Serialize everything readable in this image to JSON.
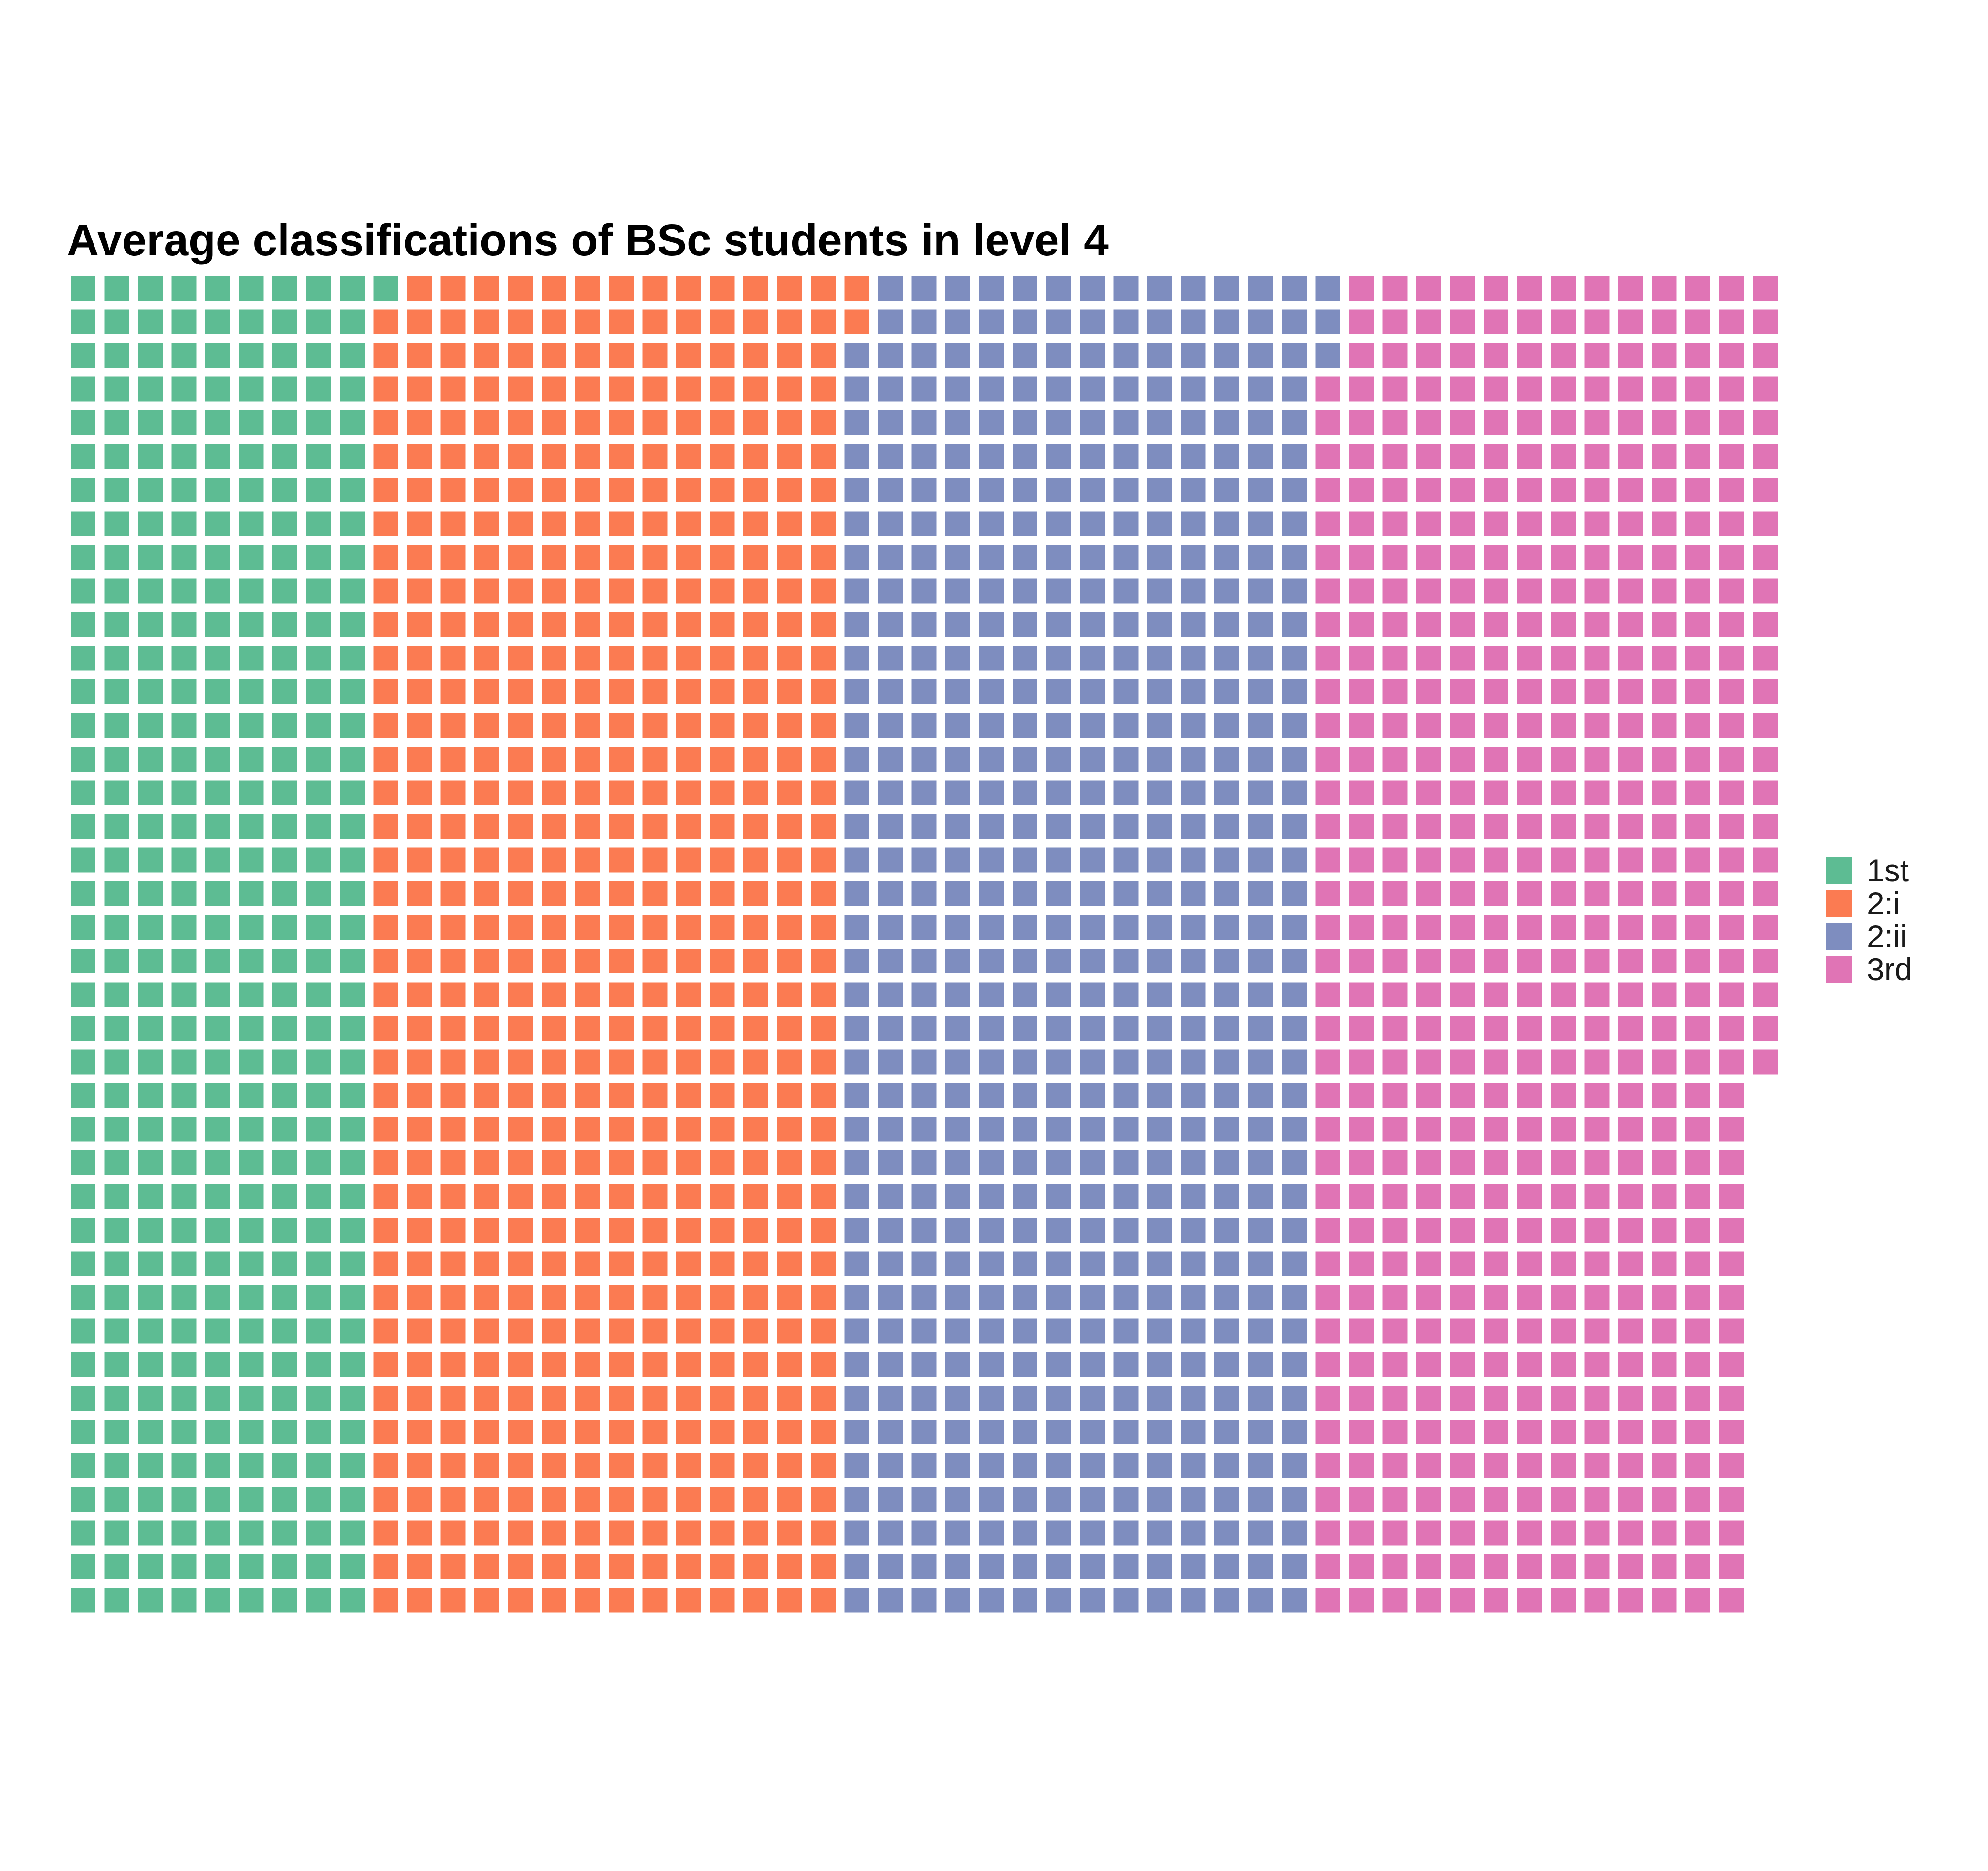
{
  "chart_data": {
    "type": "waffle",
    "title": "Average classifications of BSc students in level 4",
    "rows": 40,
    "fill_order": "column-major, top to bottom",
    "categories": [
      "1st",
      "2:i",
      "2:ii",
      "3rd"
    ],
    "values": [
      361,
      561,
      561,
      541
    ],
    "colors": [
      "#5dbc93",
      "#fb7b52",
      "#7e8dbf",
      "#e074b5"
    ],
    "legend": {
      "position": "right",
      "entries": [
        "1st",
        "2:i",
        "2:ii",
        "3rd"
      ]
    },
    "grid": false,
    "axes": false
  }
}
